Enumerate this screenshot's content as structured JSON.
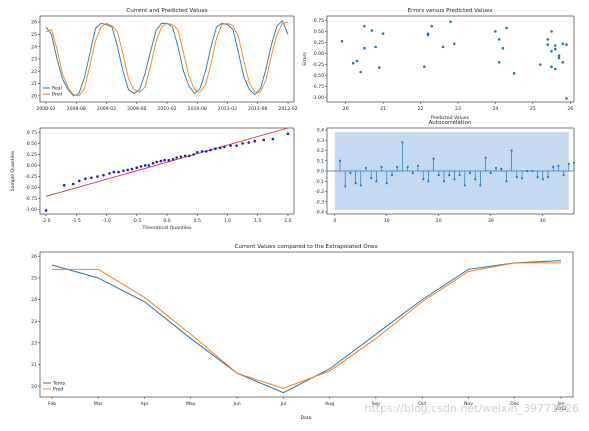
{
  "chart_data": [
    {
      "type": "line",
      "title": "Current and Predicted Values",
      "x_tick_labels": [
        "2008-02",
        "2008-08",
        "2009-02",
        "2009-08",
        "2010-02",
        "2010-08",
        "2011-02",
        "2011-08",
        "2012-02"
      ],
      "ylim": [
        19.5,
        26.5
      ],
      "y_ticks": [
        20,
        21,
        22,
        23,
        24,
        25,
        26
      ],
      "legend_position": "lower-left",
      "series": [
        {
          "name": "Real",
          "color": "#1f77b4",
          "values": [
            25.6,
            25.0,
            23.0,
            21.4,
            20.5,
            20.0,
            20.2,
            21.5,
            23.5,
            25.5,
            25.9,
            25.8,
            25.6,
            24.0,
            22.0,
            20.5,
            20.2,
            20.5,
            21.8,
            23.6,
            25.3,
            25.9,
            25.9,
            25.6,
            24.0,
            22.0,
            20.8,
            20.2,
            20.6,
            22.0,
            24.0,
            25.6,
            25.9,
            25.8,
            25.4,
            23.5,
            21.5,
            20.5,
            20.1,
            20.6,
            22.2,
            24.2,
            25.7,
            26.1,
            25.0
          ]
        },
        {
          "name": "Pred",
          "color": "#ff7f0e",
          "values": [
            25.2,
            25.4,
            23.8,
            21.8,
            20.7,
            20.1,
            20.0,
            20.6,
            22.5,
            24.5,
            25.6,
            25.9,
            25.7,
            25.2,
            23.4,
            21.4,
            20.5,
            20.3,
            20.7,
            22.4,
            24.4,
            25.6,
            25.9,
            25.8,
            25.4,
            23.5,
            21.6,
            20.5,
            20.3,
            20.9,
            22.6,
            24.7,
            25.8,
            25.9,
            25.7,
            24.8,
            22.8,
            21.0,
            20.3,
            20.3,
            21.3,
            23.3,
            25.0,
            25.9,
            26.0
          ]
        }
      ]
    },
    {
      "type": "scatter",
      "title": "Errors versus Predicted Values",
      "xlabel": "Predicted Values",
      "ylabel": "Errors",
      "x_ticks": [
        20,
        21,
        22,
        23,
        24,
        25,
        26
      ],
      "y_ticks": [
        -1.0,
        -0.75,
        -0.5,
        -0.25,
        0.0,
        0.25,
        0.5,
        0.75
      ],
      "y_tick_labels": [
        "-1.00",
        "-0.75",
        "-0.50",
        "-0.25",
        "0.00",
        "0.25",
        "0.50",
        "0.75"
      ],
      "xlim": [
        19.5,
        26.1
      ],
      "ylim": [
        -1.1,
        0.85
      ],
      "color": "#1f77b4",
      "x": [
        19.9,
        20.2,
        20.3,
        20.4,
        20.5,
        20.5,
        20.7,
        20.8,
        20.9,
        21.0,
        22.1,
        22.2,
        22.2,
        22.3,
        22.6,
        22.8,
        22.9,
        24.0,
        24.1,
        24.1,
        24.2,
        24.3,
        24.5,
        25.2,
        25.4,
        25.4,
        25.5,
        25.5,
        25.6,
        25.6,
        25.7,
        25.8,
        25.9,
        25.5,
        25.6,
        25.7,
        25.8,
        25.9
      ],
      "y": [
        0.28,
        -0.22,
        -0.17,
        -0.42,
        0.62,
        0.12,
        0.52,
        0.15,
        -0.32,
        0.45,
        -0.3,
        0.45,
        0.42,
        0.62,
        0.15,
        0.72,
        0.22,
        0.5,
        0.32,
        -0.2,
        0.12,
        0.58,
        -0.45,
        -0.25,
        0.32,
        0.2,
        0.05,
        -0.3,
        0.1,
        -0.35,
        -0.1,
        0.22,
        -1.02,
        0.5,
        0.18,
        -0.05,
        -0.2,
        0.2
      ]
    },
    {
      "type": "scatter",
      "title": "",
      "xlabel": "Theoretical Quantiles",
      "ylabel": "Sample Quantiles",
      "x_ticks": [
        -2.0,
        -1.5,
        -1.0,
        -0.5,
        0.0,
        0.5,
        1.0,
        1.5,
        2.0
      ],
      "x_tick_labels": [
        "-2.0",
        "-1.5",
        "-1.0",
        "-0.5",
        "0.0",
        "0.5",
        "1.0",
        "1.5",
        "2.0"
      ],
      "y_ticks": [
        -1.0,
        -0.75,
        -0.5,
        -0.25,
        0.0,
        0.25,
        0.5,
        0.75
      ],
      "y_tick_labels": [
        "-1.00",
        "-0.75",
        "-0.50",
        "-0.25",
        "0.00",
        "0.25",
        "0.50",
        "0.75"
      ],
      "xlim": [
        -2.1,
        2.1
      ],
      "ylim": [
        -1.1,
        0.85
      ],
      "point_color": "#1f1fb4",
      "reference_line": {
        "color": "#e03030",
        "x": [
          -2.0,
          2.0
        ],
        "y": [
          -0.7,
          0.85
        ]
      },
      "x": [
        -2.0,
        -1.7,
        -1.55,
        -1.45,
        -1.35,
        -1.25,
        -1.15,
        -1.05,
        -0.95,
        -0.88,
        -0.8,
        -0.72,
        -0.65,
        -0.58,
        -0.5,
        -0.43,
        -0.36,
        -0.3,
        -0.23,
        -0.17,
        -0.1,
        -0.04,
        0.03,
        0.1,
        0.16,
        0.23,
        0.3,
        0.37,
        0.44,
        0.5,
        0.58,
        0.65,
        0.72,
        0.8,
        0.88,
        0.95,
        1.05,
        1.15,
        1.25,
        1.35,
        1.45,
        1.6,
        1.75,
        2.0
      ],
      "y": [
        -1.02,
        -0.45,
        -0.42,
        -0.35,
        -0.3,
        -0.28,
        -0.25,
        -0.22,
        -0.18,
        -0.15,
        -0.15,
        -0.12,
        -0.1,
        -0.08,
        -0.05,
        -0.02,
        0.0,
        0.0,
        0.05,
        0.08,
        0.1,
        0.12,
        0.12,
        0.14,
        0.18,
        0.2,
        0.22,
        0.22,
        0.25,
        0.3,
        0.32,
        0.32,
        0.35,
        0.38,
        0.4,
        0.42,
        0.45,
        0.45,
        0.5,
        0.52,
        0.55,
        0.58,
        0.6,
        0.72
      ]
    },
    {
      "type": "bar",
      "title": "Autocorrelation",
      "x_ticks": [
        0,
        10,
        20,
        30,
        40
      ],
      "y_ticks": [
        -0.4,
        -0.3,
        -0.2,
        -0.1,
        0.0,
        0.1,
        0.2,
        0.3,
        0.4
      ],
      "xlim": [
        -1.5,
        46
      ],
      "ylim": [
        -0.42,
        0.42
      ],
      "confidence_band": {
        "color": "#c5daf0",
        "lower": -0.38,
        "upper": 0.38
      },
      "color": "#1f77b4",
      "values": [
        0.1,
        -0.15,
        -0.02,
        -0.12,
        -0.14,
        0.03,
        -0.07,
        -0.1,
        0.04,
        -0.12,
        -0.04,
        0.04,
        0.28,
        0.04,
        -0.02,
        0.05,
        -0.08,
        -0.1,
        0.12,
        -0.04,
        -0.1,
        -0.04,
        -0.08,
        -0.04,
        -0.14,
        -0.02,
        -0.08,
        -0.14,
        0.13,
        -0.02,
        0.03,
        0.02,
        -0.1,
        0.2,
        -0.06,
        -0.07,
        0.0,
        0.0,
        -0.06,
        -0.08,
        -0.06,
        0.04,
        0.05,
        -0.04,
        0.07,
        0.08
      ]
    },
    {
      "type": "line",
      "title": "Current Values compared to the Extrapolated Ones",
      "xlabel": "Date",
      "categories": [
        "Feb",
        "Mar",
        "Apr",
        "May",
        "Jun",
        "Jul",
        "Aug",
        "Sep",
        "Oct",
        "Nov",
        "Dec",
        "Jan\n2012"
      ],
      "ylim": [
        19.5,
        26.2
      ],
      "y_ticks": [
        20,
        21,
        22,
        23,
        24,
        25,
        26
      ],
      "y_tick_labels": [
        "20",
        "21",
        "22",
        "23",
        "24",
        "25",
        "26"
      ],
      "legend_position": "lower-left",
      "series": [
        {
          "name": "Temp",
          "color": "#1f77b4",
          "values": [
            25.6,
            25.0,
            23.9,
            22.2,
            20.6,
            19.7,
            20.8,
            22.4,
            24.0,
            25.4,
            25.7,
            25.8
          ]
        },
        {
          "name": "Pred",
          "color": "#ff7f0e",
          "values": [
            25.4,
            25.4,
            24.1,
            22.4,
            20.6,
            19.9,
            20.7,
            22.2,
            23.9,
            25.3,
            25.7,
            25.7
          ]
        }
      ]
    }
  ],
  "watermark": "https://blog.csdn.net/weixin_39771026"
}
